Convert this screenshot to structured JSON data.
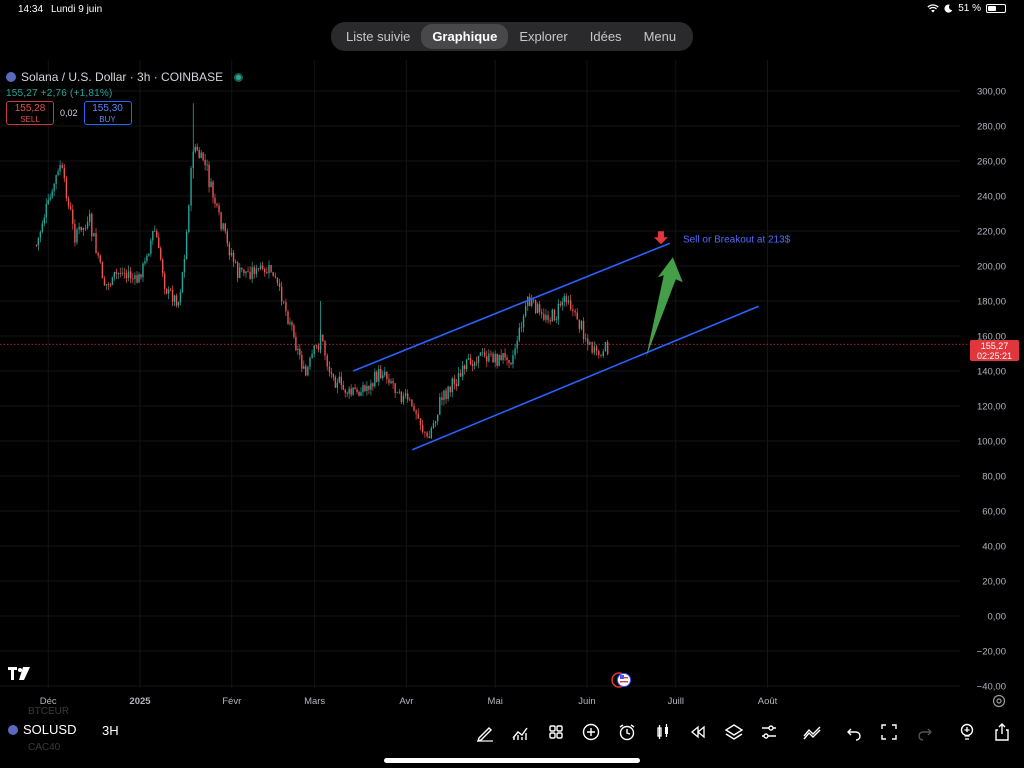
{
  "status_bar": {
    "time": "14:34",
    "date": "Lundi 9 juin",
    "battery": "51 %",
    "battery_level": 0.51
  },
  "nav": {
    "tabs": [
      {
        "label": "Liste suivie",
        "active": false
      },
      {
        "label": "Graphique",
        "active": true
      },
      {
        "label": "Explorer",
        "active": false
      },
      {
        "label": "Idées",
        "active": false
      },
      {
        "label": "Menu",
        "active": false
      }
    ]
  },
  "symbol": {
    "title": "Solana / U.S. Dollar · 3h · COINBASE",
    "price_line": "155,27  +2,76 (+1,81%)",
    "sell_price": "155,28",
    "sell_label": "SELL",
    "spread": "0,02",
    "buy_price": "155,30",
    "buy_label": "BUY"
  },
  "last_price": {
    "value": "155,27",
    "countdown": "02:25:21"
  },
  "annotation": {
    "text": "Sell or Breakout at 213$"
  },
  "colors": {
    "up": "#26a69a",
    "down": "#ef5350",
    "channel": "#2962ff",
    "arrow_up": "#4caf50",
    "arrow_down": "#e0363c",
    "last_price": "#e0363c"
  },
  "chart_data": {
    "type": "candlestick",
    "symbol": "SOLUSD",
    "interval": "3h",
    "y_ticks": [
      "300,00",
      "280,00",
      "260,00",
      "240,00",
      "220,00",
      "200,00",
      "180,00",
      "160,00",
      "140,00",
      "120,00",
      "100,00",
      "80,00",
      "60,00",
      "40,00",
      "20,00",
      "0,00",
      "−20,00",
      "−40,00"
    ],
    "x_ticks": [
      "Déc",
      "2025",
      "Févr",
      "Mars",
      "Avr",
      "Mai",
      "Juin",
      "Juill",
      "Août"
    ],
    "ylim": [
      -40,
      305
    ],
    "last_price": 155.27,
    "price_path": [
      {
        "date": "2024-11-27",
        "price": 212
      },
      {
        "date": "2024-12-05",
        "price": 258
      },
      {
        "date": "2024-12-10",
        "price": 218
      },
      {
        "date": "2024-12-15",
        "price": 225
      },
      {
        "date": "2024-12-20",
        "price": 188
      },
      {
        "date": "2024-12-26",
        "price": 198
      },
      {
        "date": "2024-12-31",
        "price": 190
      },
      {
        "date": "2025-01-06",
        "price": 220
      },
      {
        "date": "2025-01-10",
        "price": 186
      },
      {
        "date": "2025-01-14",
        "price": 180
      },
      {
        "date": "2025-01-16",
        "price": 205
      },
      {
        "date": "2025-01-19",
        "price": 268
      },
      {
        "date": "2025-01-23",
        "price": 258
      },
      {
        "date": "2025-01-27",
        "price": 230
      },
      {
        "date": "2025-02-03",
        "price": 196
      },
      {
        "date": "2025-02-10",
        "price": 198
      },
      {
        "date": "2025-02-15",
        "price": 195
      },
      {
        "date": "2025-02-20",
        "price": 172
      },
      {
        "date": "2025-02-26",
        "price": 137
      },
      {
        "date": "2025-03-03",
        "price": 160
      },
      {
        "date": "2025-03-06",
        "price": 141
      },
      {
        "date": "2025-03-12",
        "price": 126
      },
      {
        "date": "2025-03-18",
        "price": 130
      },
      {
        "date": "2025-03-24",
        "price": 140
      },
      {
        "date": "2025-03-31",
        "price": 125
      },
      {
        "date": "2025-04-05",
        "price": 115
      },
      {
        "date": "2025-04-08",
        "price": 100
      },
      {
        "date": "2025-04-13",
        "price": 125
      },
      {
        "date": "2025-04-20",
        "price": 140
      },
      {
        "date": "2025-04-26",
        "price": 150
      },
      {
        "date": "2025-05-01",
        "price": 147
      },
      {
        "date": "2025-05-07",
        "price": 148
      },
      {
        "date": "2025-05-12",
        "price": 180
      },
      {
        "date": "2025-05-16",
        "price": 173
      },
      {
        "date": "2025-05-21",
        "price": 170
      },
      {
        "date": "2025-05-25",
        "price": 183
      },
      {
        "date": "2025-05-28",
        "price": 172
      },
      {
        "date": "2025-06-02",
        "price": 155
      },
      {
        "date": "2025-06-05",
        "price": 148
      },
      {
        "date": "2025-06-08",
        "price": 153
      },
      {
        "date": "2025-06-09",
        "price": 155.27
      }
    ],
    "drawings": {
      "channel_upper": [
        {
          "date": "2025-03-14",
          "price": 140
        },
        {
          "date": "2025-06-29",
          "price": 213
        }
      ],
      "channel_lower": [
        {
          "date": "2025-04-03",
          "price": 95
        },
        {
          "date": "2025-07-29",
          "price": 177
        }
      ],
      "breakout_arrow": [
        {
          "date": "2025-06-21",
          "price": 148
        },
        {
          "date": "2025-06-30",
          "price": 205
        }
      ],
      "sell_marker": {
        "date": "2025-06-26",
        "price": 213
      }
    }
  },
  "toolbar": {
    "symbol": "SOLUSD",
    "interval": "3H",
    "ghost_above": "BTCEUR",
    "ghost_below": "CAC40",
    "icons": [
      "pencil-icon",
      "indicators-icon",
      "grid-layout-icon",
      "add-icon",
      "alarm-icon",
      "candles-icon",
      "replay-icon",
      "layers-icon",
      "sliders-icon",
      "fib-icon",
      "undo-icon",
      "fullscreen-icon",
      "redo-icon",
      "ideas-bulb-icon",
      "share-icon"
    ]
  }
}
